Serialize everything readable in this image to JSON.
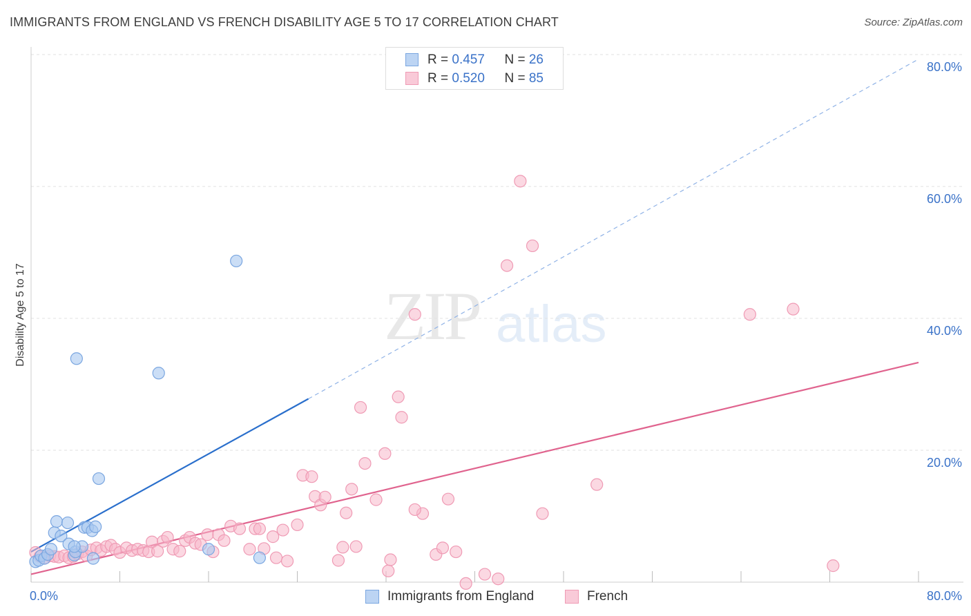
{
  "header": {
    "title": "IMMIGRANTS FROM ENGLAND VS FRENCH DISABILITY AGE 5 TO 17 CORRELATION CHART",
    "source": "Source: ZipAtlas.com"
  },
  "watermark": {
    "zip": "ZIP",
    "atlas": "atlas"
  },
  "legend_top": {
    "rows": [
      {
        "r_label": "R = ",
        "r_value": "0.457",
        "n_label": "N = ",
        "n_value": "26"
      },
      {
        "r_label": "R = ",
        "r_value": "0.520",
        "n_label": "N = ",
        "n_value": "85"
      }
    ]
  },
  "legend_bottom": {
    "items": [
      {
        "label": "Immigrants from England"
      },
      {
        "label": "French"
      }
    ]
  },
  "colors": {
    "blue_fill": "#a9c8f0",
    "blue_stroke": "#7aa6e0",
    "blue_line": "#2a6fcc",
    "pink_fill": "#f7b8cb",
    "pink_stroke": "#ef9ab4",
    "pink_line": "#e0638e",
    "grid": "#e2e2e2",
    "tick_label": "#3a72c8"
  },
  "chart_data": {
    "type": "scatter",
    "title": "IMMIGRANTS FROM ENGLAND VS FRENCH DISABILITY AGE 5 TO 17 CORRELATION CHART",
    "xlabel": "",
    "ylabel": "Disability Age 5 to 17",
    "xlim": [
      0,
      80
    ],
    "ylim": [
      0,
      80
    ],
    "x_tick_labels": [
      "0.0%",
      "80.0%"
    ],
    "y_tick_labels": [
      "20.0%",
      "40.0%",
      "60.0%",
      "80.0%"
    ],
    "y_ticks": [
      20,
      40,
      60,
      80
    ],
    "grid": true,
    "legend": "bottom-center",
    "series": [
      {
        "name": "Immigrants from England",
        "color": "#a9c8f0",
        "points": [
          [
            0.4,
            3.1
          ],
          [
            0.7,
            3.3
          ],
          [
            0.9,
            4.0
          ],
          [
            1.2,
            3.6
          ],
          [
            1.5,
            4.2
          ],
          [
            1.8,
            5.0
          ],
          [
            2.1,
            7.5
          ],
          [
            2.3,
            9.2
          ],
          [
            2.7,
            7.0
          ],
          [
            3.3,
            9.0
          ],
          [
            3.4,
            5.8
          ],
          [
            3.9,
            4.1
          ],
          [
            4.0,
            4.6
          ],
          [
            4.6,
            5.4
          ],
          [
            4.8,
            8.3
          ],
          [
            5.1,
            8.3
          ],
          [
            5.5,
            7.8
          ],
          [
            5.6,
            3.6
          ],
          [
            5.8,
            8.4
          ],
          [
            6.1,
            15.7
          ],
          [
            4.1,
            33.9
          ],
          [
            11.5,
            31.7
          ],
          [
            18.5,
            48.7
          ],
          [
            16.0,
            5.0
          ],
          [
            20.6,
            3.7
          ],
          [
            3.9,
            5.4
          ]
        ],
        "trend": {
          "x": [
            0,
            25
          ],
          "y": [
            4.6,
            27.8
          ],
          "extended_to": [
            80,
            79.3
          ]
        }
      },
      {
        "name": "French",
        "color": "#f7b8cb",
        "points": [
          [
            0.4,
            4.5
          ],
          [
            0.8,
            3.9
          ],
          [
            1.3,
            3.7
          ],
          [
            1.7,
            4.0
          ],
          [
            2.1,
            3.9
          ],
          [
            2.5,
            3.8
          ],
          [
            3.0,
            4.0
          ],
          [
            3.4,
            3.7
          ],
          [
            3.8,
            3.9
          ],
          [
            4.2,
            4.3
          ],
          [
            4.6,
            4.6
          ],
          [
            5.0,
            4.0
          ],
          [
            5.4,
            4.9
          ],
          [
            5.9,
            5.2
          ],
          [
            6.3,
            4.8
          ],
          [
            6.8,
            5.4
          ],
          [
            7.2,
            5.6
          ],
          [
            7.6,
            5.0
          ],
          [
            8.0,
            4.5
          ],
          [
            8.6,
            5.2
          ],
          [
            9.1,
            4.8
          ],
          [
            9.6,
            5.0
          ],
          [
            10.1,
            4.8
          ],
          [
            10.6,
            4.6
          ],
          [
            10.9,
            6.1
          ],
          [
            11.4,
            4.7
          ],
          [
            11.9,
            6.2
          ],
          [
            12.3,
            6.8
          ],
          [
            12.8,
            5.0
          ],
          [
            13.4,
            4.7
          ],
          [
            13.9,
            6.3
          ],
          [
            14.3,
            6.8
          ],
          [
            14.8,
            5.9
          ],
          [
            15.3,
            5.7
          ],
          [
            15.9,
            7.2
          ],
          [
            16.4,
            4.6
          ],
          [
            16.9,
            7.2
          ],
          [
            17.4,
            6.3
          ],
          [
            18.0,
            8.5
          ],
          [
            18.8,
            8.1
          ],
          [
            19.7,
            5.0
          ],
          [
            20.2,
            8.1
          ],
          [
            20.6,
            8.1
          ],
          [
            21.0,
            5.1
          ],
          [
            21.8,
            6.9
          ],
          [
            22.1,
            3.7
          ],
          [
            22.7,
            7.9
          ],
          [
            23.1,
            3.2
          ],
          [
            24.0,
            8.7
          ],
          [
            24.5,
            16.2
          ],
          [
            25.3,
            16.0
          ],
          [
            25.6,
            13.0
          ],
          [
            26.1,
            11.7
          ],
          [
            26.5,
            12.9
          ],
          [
            27.7,
            3.3
          ],
          [
            28.1,
            5.3
          ],
          [
            28.4,
            10.5
          ],
          [
            28.9,
            14.1
          ],
          [
            29.3,
            5.4
          ],
          [
            29.7,
            26.5
          ],
          [
            30.1,
            18.0
          ],
          [
            31.1,
            12.5
          ],
          [
            31.9,
            19.5
          ],
          [
            32.2,
            1.7
          ],
          [
            32.4,
            3.4
          ],
          [
            33.1,
            28.1
          ],
          [
            33.4,
            25.0
          ],
          [
            34.6,
            40.6
          ],
          [
            35.3,
            10.4
          ],
          [
            36.5,
            4.2
          ],
          [
            37.1,
            5.2
          ],
          [
            37.6,
            12.6
          ],
          [
            38.3,
            4.6
          ],
          [
            39.2,
            -0.2
          ],
          [
            40.9,
            1.2
          ],
          [
            42.1,
            0.5
          ],
          [
            42.9,
            48.0
          ],
          [
            44.1,
            60.8
          ],
          [
            45.2,
            51.0
          ],
          [
            46.1,
            10.4
          ],
          [
            51.0,
            14.8
          ],
          [
            64.8,
            40.6
          ],
          [
            68.7,
            41.4
          ],
          [
            72.3,
            2.5
          ],
          [
            34.6,
            11.0
          ]
        ],
        "trend": {
          "x": [
            0,
            80
          ],
          "y": [
            1.2,
            33.3
          ]
        }
      }
    ]
  }
}
